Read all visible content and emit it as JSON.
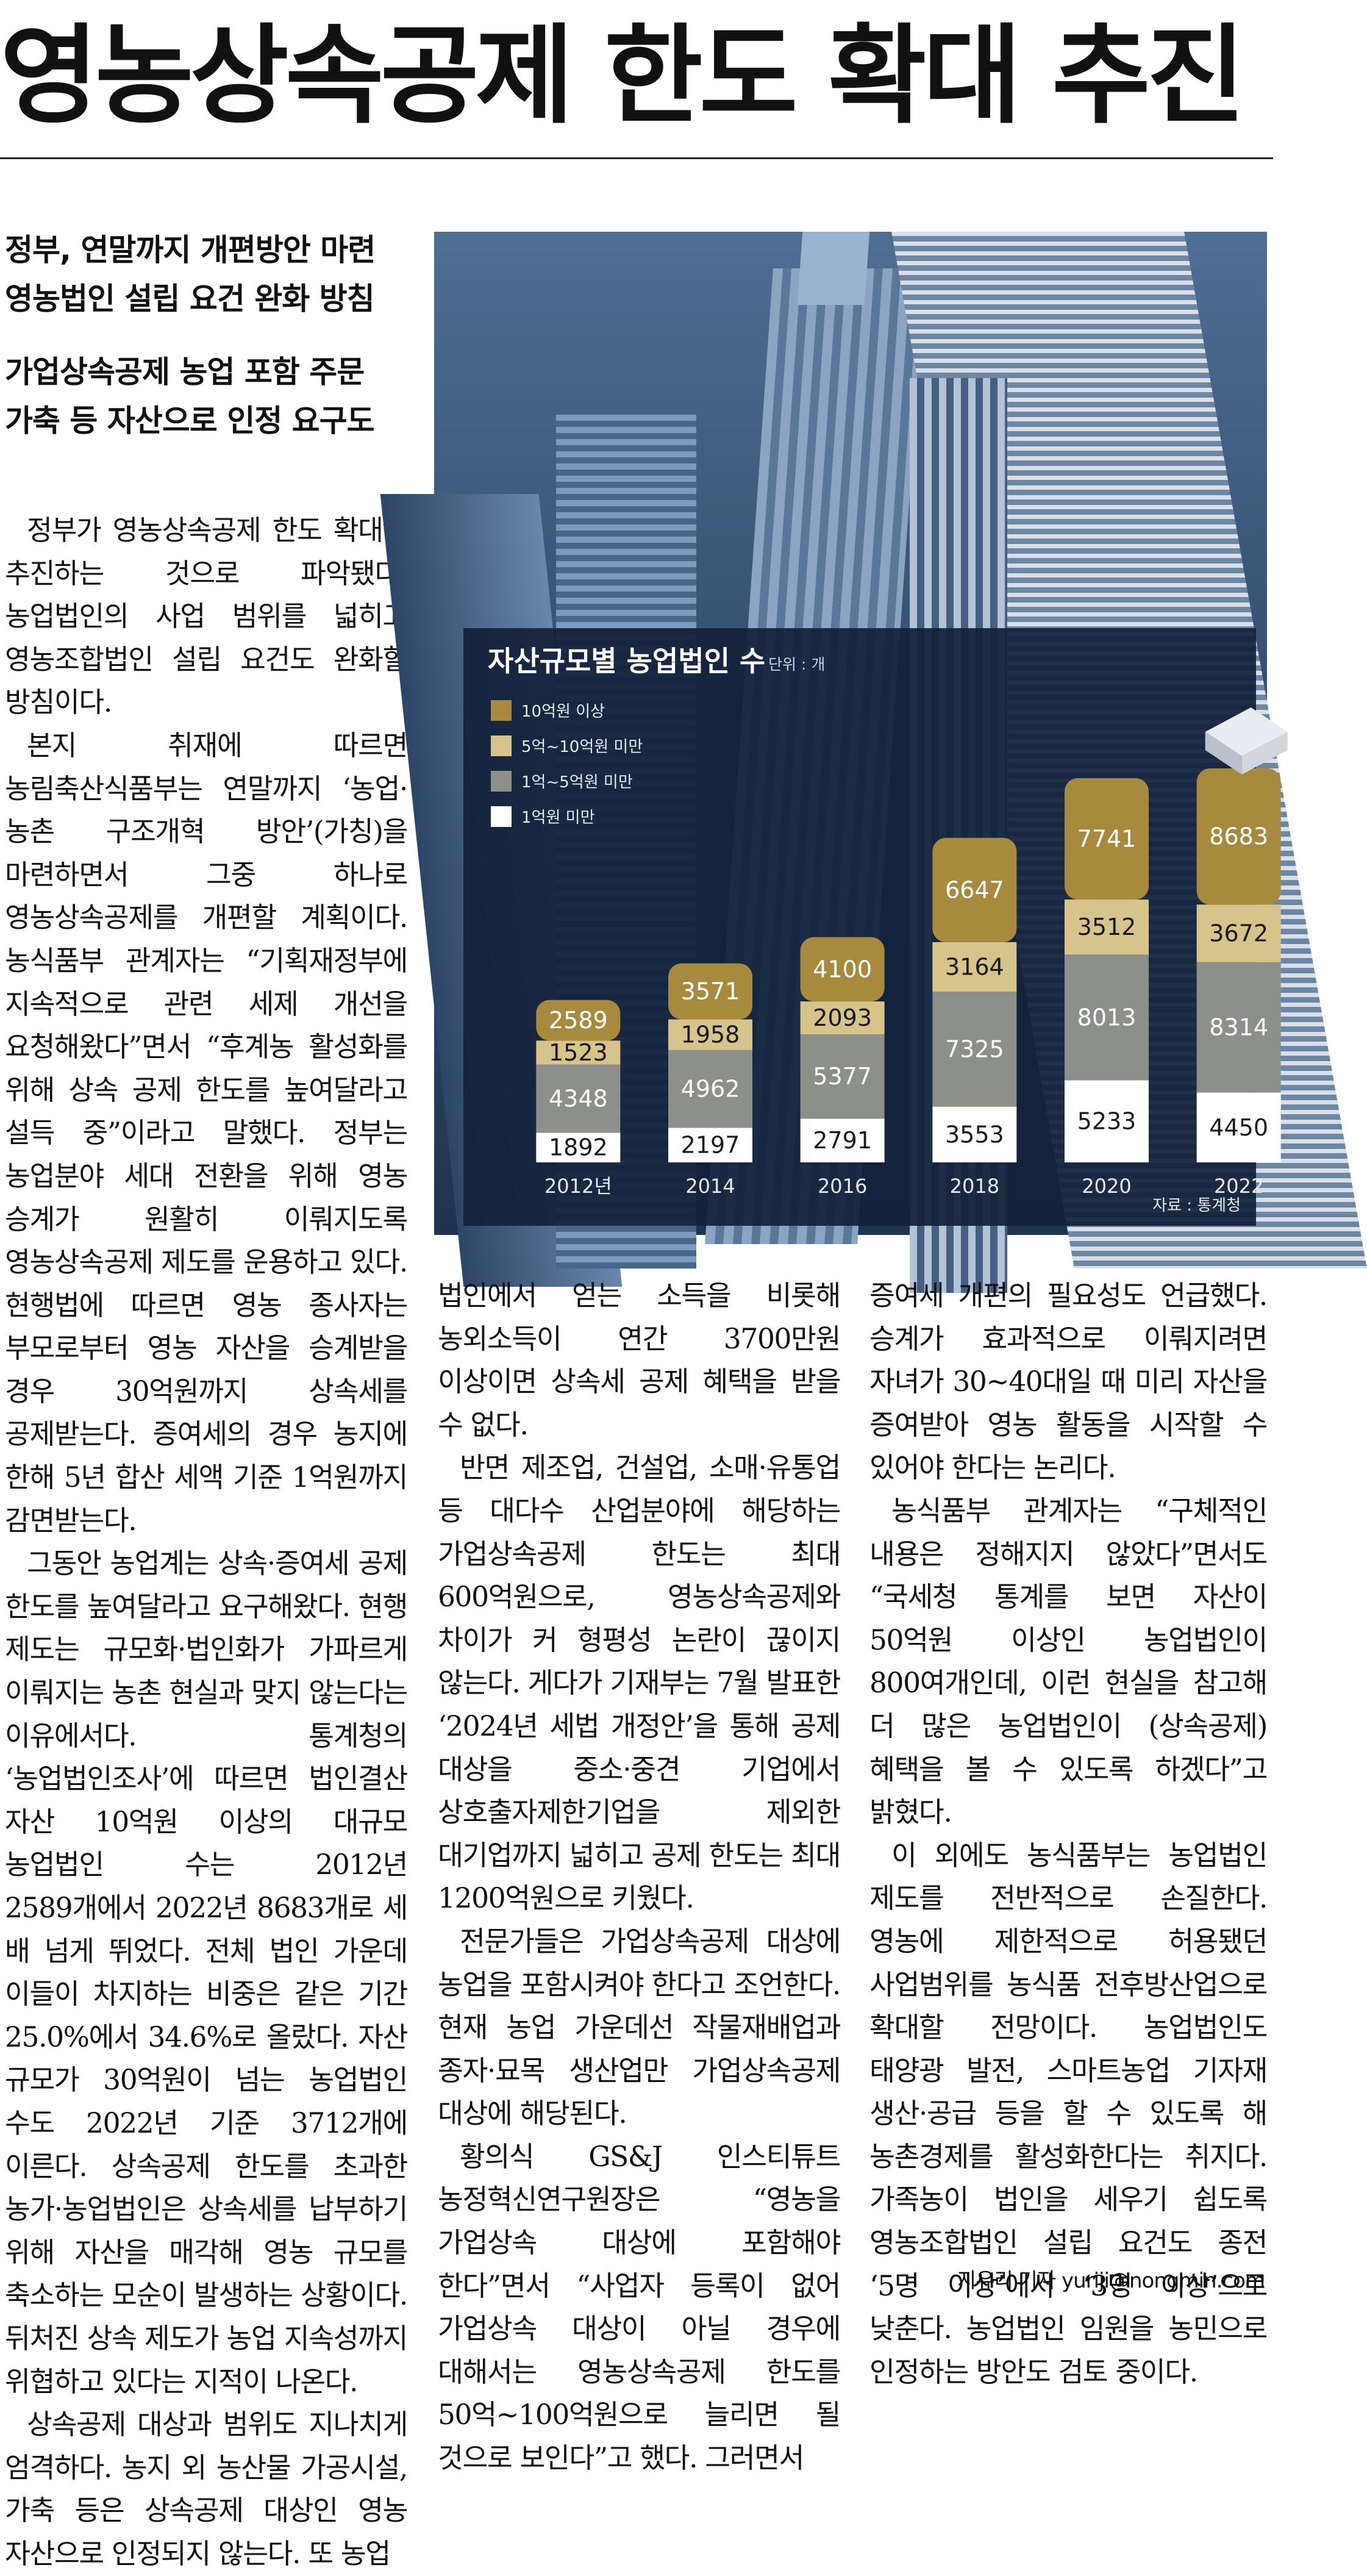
{
  "headline": "영농상속공제 한도 확대 추진",
  "subheads": [
    "정부, 연말까지 개편방안 마련",
    "영농법인 설립 요건 완화 방침",
    "가업상속공제 농업 포함 주문",
    "가축 등 자산으로 인정 요구도"
  ],
  "body": {
    "col1": [
      {
        "text": "정부가 영농상속공제 한도 확대를 추진하는 것으로 파악됐다. 농업법인의 사업 범위를 넓히고 영농조합법인 설립 요건도 완화할 방침이다.",
        "indent": true
      },
      {
        "text": "본지 취재에 따르면 농림축산식품부는 연말까지 ‘농업·농촌 구조개혁 방안’(가칭)을 마련하면서 그중 하나로 영농상속공제를 개편할 계획이다. 농식품부 관계자는 “기획재정부에 지속적으로 관련 세제 개선을 요청해왔다”면서 “후계농 활성화를 위해 상속 공제 한도를 높여달라고 설득 중”이라고 말했다. 정부는 농업분야 세대 전환을 위해 영농 승계가 원활히 이뤄지도록 영농상속공제 제도를 운용하고 있다. 현행법에 따르면 영농 종사자는 부모로부터 영농 자산을 승계받을 경우 30억원까지 상속세를 공제받는다. 증여세의 경우 농지에 한해 5년 합산 세액 기준 1억원까지 감면받는다.",
        "indent": true
      },
      {
        "text": "그동안 농업계는 상속·증여세 공제 한도를 높여달라고 요구해왔다. 현행 제도는 규모화·법인화가 가파르게 이뤄지는 농촌 현실과 맞지 않는다는 이유에서다. 통계청의 ‘농업법인조사’에 따르면 법인결산 자산 10억원 이상의 대규모 농업법인 수는 2012년 2589개에서 2022년 8683개로 세 배 넘게 뛰었다. 전체 법인 가운데 이들이 차지하는 비중은 같은 기간 25.0%에서 34.6%로 올랐다. 자산 규모가 30억원이 넘는 농업법인 수도 2022년 기준 3712개에 이른다. 상속공제 한도를 초과한 농가·농업법인은 상속세를 납부하기 위해 자산을 매각해 영농 규모를 축소하는 모순이 발생하는 상황이다. 뒤처진 상속 제도가 농업 지속성까지 위협하고 있다는 지적이 나온다.",
        "indent": true
      },
      {
        "text": "상속공제 대상과 범위도 지나치게 엄격하다. 농지 외 농산물 가공시설, 가축 등은 상속공제 대상인 영농 자산으로 인정되지 않는다. 또 농업",
        "indent": true
      }
    ],
    "col2": [
      {
        "text": "법인에서 얻는 소득을 비롯해 농외소득이 연간 3700만원 이상이면 상속세 공제 혜택을 받을 수 없다.",
        "indent": false
      },
      {
        "text": "반면 제조업, 건설업, 소매·유통업 등 대다수 산업분야에 해당하는 가업상속공제 한도는 최대 600억원으로, 영농상속공제와 차이가 커 형평성 논란이 끊이지 않는다. 게다가 기재부는 7월 발표한 ‘2024년 세법 개정안’을 통해 공제 대상을 중소·중견 기업에서 상호출자제한기업을 제외한 대기업까지 넓히고 공제 한도는 최대 1200억원으로 키웠다.",
        "indent": true
      },
      {
        "text": "전문가들은 가업상속공제 대상에 농업을 포함시켜야 한다고 조언한다. 현재 농업 가운데선 작물재배업과 종자·묘목 생산업만 가업상속공제 대상에 해당된다.",
        "indent": true
      },
      {
        "text": "황의식 GS&J 인스티튜트 농정혁신연구원장은 “영농을 가업상속 대상에 포함해야 한다”면서 “사업자 등록이 없어 가업상속 대상이 아닐 경우에 대해서는 영농상속공제 한도를 50억~100억원으로 늘리면 될 것으로 보인다”고 했다. 그러면서",
        "indent": true
      }
    ],
    "col3": [
      {
        "text": "증여세 개편의 필요성도 언급했다. 승계가 효과적으로 이뤄지려면 자녀가 30~40대일 때 미리 자산을 증여받아 영농 활동을 시작할 수 있어야 한다는 논리다.",
        "indent": false
      },
      {
        "text": "농식품부 관계자는 “구체적인 내용은 정해지지 않았다”면서도 “국세청 통계를 보면 자산이 50억원 이상인 농업법인이 800여개인데, 이런 현실을 참고해 더 많은 농업법인이 (상속공제) 혜택을 볼 수 있도록 하겠다”고 밝혔다.",
        "indent": true
      },
      {
        "text": "이 외에도 농식품부는 농업법인 제도를 전반적으로 손질한다. 영농에 제한적으로 허용됐던 사업범위를 농식품 전후방산업으로 확대할 전망이다. 농업법인도 태양광 발전, 스마트농업 기자재 생산·공급 등을 할 수 있도록 해 농촌경제를 활성화한다는 취지다. 가족농이 법인을 세우기 쉽도록 영농조합법인 설립 요건도 종전 ‘5명 이상’에서 ‘3명 이상’으로 낮춘다. 농업법인 임원을 농민으로 인정하는 방안도 검토 중이다.",
        "indent": true
      }
    ]
  },
  "byline": "지유리 기자 yuriji@nongmin.com",
  "colors": {
    "tier_10b_plus": "#a78a3e",
    "tier_5b_10b": "#d6c48a",
    "tier_1b_5b": "#8d8f8a",
    "tier_under_1b": "#ffffff",
    "chart_bg": "#12213a"
  },
  "chart_data": {
    "type": "bar",
    "stacked": true,
    "title": "자산규모별 농업법인 수",
    "unit": "단위 : 개",
    "categories": [
      "2012년",
      "2014",
      "2016",
      "2018",
      "2020",
      "2022"
    ],
    "series": [
      {
        "name": "1억원 미만",
        "values": [
          1892,
          2197,
          2791,
          3553,
          5233,
          4450
        ],
        "color": "#ffffff"
      },
      {
        "name": "1억~5억원 미만",
        "values": [
          4348,
          4962,
          5377,
          7325,
          8013,
          8314
        ],
        "color": "#8d8f8a"
      },
      {
        "name": "5억~10억원 미만",
        "values": [
          1523,
          1958,
          2093,
          3164,
          3512,
          3672
        ],
        "color": "#d6c48a"
      },
      {
        "name": "10억원 이상",
        "values": [
          2589,
          3571,
          4100,
          6647,
          7741,
          8683
        ],
        "color": "#a78a3e"
      }
    ],
    "legend_order": [
      "10억원 이상",
      "5억~10억원 미만",
      "1억~5억원 미만",
      "1억원 미만"
    ],
    "legend_position": "top-left",
    "source": "자료 : 통계청",
    "grid": false
  }
}
